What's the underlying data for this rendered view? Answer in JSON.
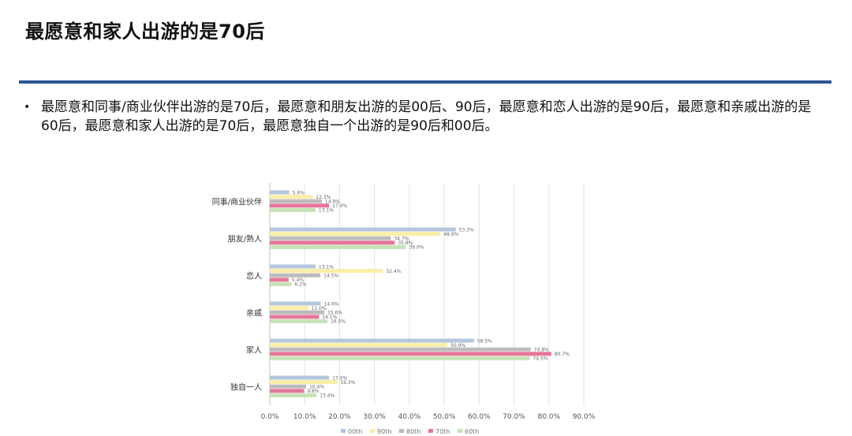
{
  "slide": {
    "title": "最愿意和家人出游的是70后",
    "bullet_symbol": "•",
    "bullet": "最愿意和同事/商业伙伴出游的是70后，最愿意和朋友出游的是00后、90后，最愿意和恋人出游的是90后，最愿意和亲戚出游的是60后，最愿意和家人出游的是70后，最愿意独自一个出游的是90后和00后。"
  },
  "chart_data": {
    "type": "bar",
    "orientation": "horizontal",
    "categories": [
      "同事/商业伙伴",
      "朋友/熟人",
      "恋人",
      "亲戚",
      "家人",
      "独自一人"
    ],
    "series": [
      {
        "name": "00th",
        "color": "#b4c7dc",
        "values": [
          5.6,
          53.3,
          13.1,
          14.6,
          58.5,
          17.0
        ],
        "labels": [
          "5.6%",
          "53.3%",
          "13.1%",
          "14.6%",
          "58.5%",
          "17.0%"
        ]
      },
      {
        "name": "90th",
        "color": "#fbeea8",
        "values": [
          12.3,
          48.9,
          32.4,
          11.0,
          50.9,
          19.3
        ],
        "labels": [
          "12.3%",
          "48.9%",
          "32.4%",
          "11.0%",
          "50.9%",
          "19.3%"
        ]
      },
      {
        "name": "80th",
        "color": "#bcbcbc",
        "values": [
          14.9,
          34.7,
          14.5,
          15.6,
          74.8,
          10.4
        ],
        "labels": [
          "14.9%",
          "34.7%",
          "14.5%",
          "15.6%",
          "74.8%",
          "10.4%"
        ]
      },
      {
        "name": "70th",
        "color": "#e7769b",
        "values": [
          17.0,
          35.8,
          5.4,
          14.1,
          80.7,
          9.8
        ],
        "labels": [
          "17.0%",
          "35.8%",
          "5.4%",
          "14.1%",
          "80.7%",
          "9.8%"
        ]
      },
      {
        "name": "60th",
        "color": "#c6e2b6",
        "values": [
          13.1,
          39.0,
          6.2,
          16.5,
          74.5,
          13.4
        ],
        "labels": [
          "13.1%",
          "39.0%",
          "6.2%",
          "16.5%",
          "74.5%",
          "13.4%"
        ]
      }
    ],
    "xlim": [
      0,
      90
    ],
    "xticks": [
      "0.0%",
      "10.0%",
      "20.0%",
      "30.0%",
      "40.0%",
      "50.0%",
      "60.0%",
      "70.0%",
      "80.0%",
      "90.0%"
    ],
    "grid": true,
    "legend": "bottom",
    "xlabel": "",
    "ylabel": ""
  }
}
